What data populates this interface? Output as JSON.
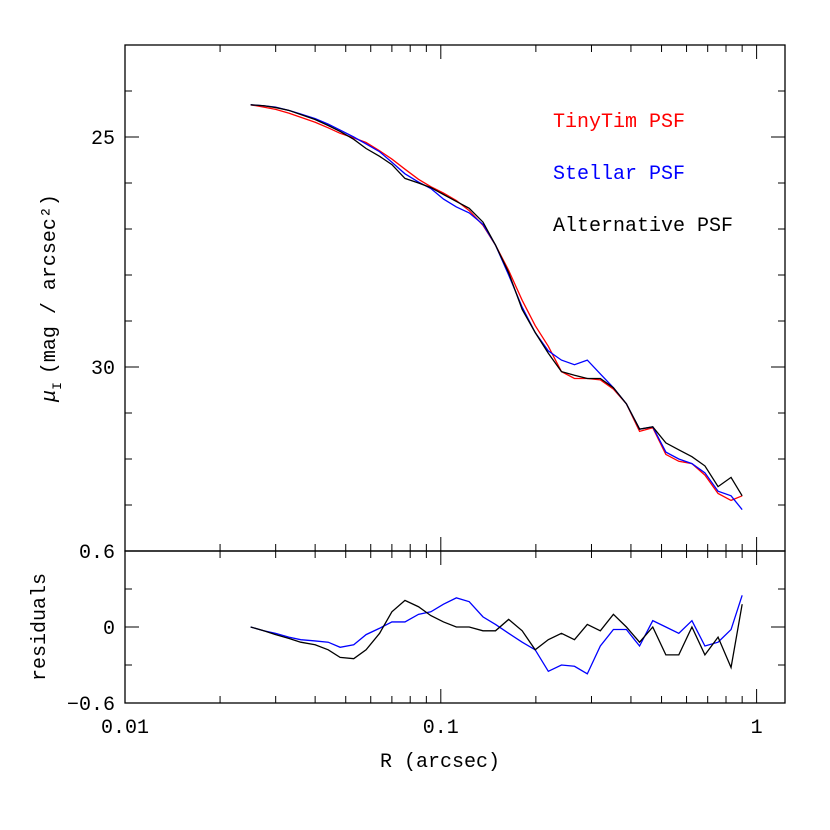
{
  "chart_data": [
    {
      "type": "line",
      "ylabel": "μ",
      "ylabel_sub": "I",
      "ylabel_unit": "(mag / arcsec²)",
      "x": [
        0.025,
        0.0275,
        0.03,
        0.033,
        0.036,
        0.04,
        0.044,
        0.048,
        0.053,
        0.058,
        0.064,
        0.07,
        0.077,
        0.085,
        0.093,
        0.102,
        0.112,
        0.123,
        0.136,
        0.149,
        0.164,
        0.181,
        0.199,
        0.219,
        0.241,
        0.265,
        0.291,
        0.32,
        0.352,
        0.387,
        0.426,
        0.469,
        0.516,
        0.567,
        0.624,
        0.686,
        0.755,
        0.83,
        0.9
      ],
      "xscale": "log",
      "xlim": [
        0.01,
        1.23
      ],
      "xticks": [
        0.01,
        0.1,
        1
      ],
      "show_xtick_labels": false,
      "ylim": [
        34,
        23
      ],
      "yticks": [
        25,
        30
      ],
      "legend": "upper right",
      "series": [
        {
          "name": "TinyTim PSF",
          "color": "#ff0000",
          "values": [
            24.3,
            24.35,
            24.4,
            24.48,
            24.57,
            24.68,
            24.8,
            24.92,
            25.02,
            25.12,
            25.3,
            25.48,
            25.7,
            25.92,
            26.08,
            26.22,
            26.38,
            26.6,
            26.92,
            27.35,
            27.9,
            28.55,
            29.1,
            29.55,
            30.1,
            30.25,
            30.25,
            30.28,
            30.48,
            30.8,
            31.4,
            31.32,
            31.9,
            32.05,
            32.1,
            32.35,
            32.75,
            32.9,
            32.8
          ]
        },
        {
          "name": "Stellar PSF",
          "color": "#0000ff",
          "values": [
            24.3,
            24.32,
            24.35,
            24.42,
            24.5,
            24.6,
            24.72,
            24.85,
            25.0,
            25.15,
            25.32,
            25.55,
            25.8,
            25.98,
            26.12,
            26.35,
            26.52,
            26.65,
            26.9,
            27.35,
            28.0,
            28.7,
            29.25,
            29.65,
            29.85,
            29.95,
            29.85,
            30.15,
            30.45,
            30.8,
            31.35,
            31.3,
            31.85,
            32.0,
            32.1,
            32.3,
            32.7,
            32.8,
            33.1
          ]
        },
        {
          "name": "Alternative PSF",
          "color": "#000000",
          "values": [
            24.3,
            24.32,
            24.36,
            24.42,
            24.51,
            24.62,
            24.75,
            24.88,
            25.05,
            25.25,
            25.42,
            25.6,
            25.9,
            26.0,
            26.1,
            26.25,
            26.4,
            26.55,
            26.85,
            27.35,
            27.95,
            28.75,
            29.25,
            29.7,
            30.1,
            30.18,
            30.25,
            30.25,
            30.45,
            30.8,
            31.35,
            31.3,
            31.65,
            31.8,
            31.95,
            32.15,
            32.6,
            32.4,
            32.8
          ]
        }
      ]
    },
    {
      "type": "line",
      "ylabel": "residuals",
      "xlabel": "R (arcsec)",
      "x": [
        0.025,
        0.0275,
        0.03,
        0.033,
        0.036,
        0.04,
        0.044,
        0.048,
        0.053,
        0.058,
        0.064,
        0.07,
        0.077,
        0.085,
        0.093,
        0.102,
        0.112,
        0.123,
        0.136,
        0.149,
        0.164,
        0.181,
        0.199,
        0.219,
        0.241,
        0.265,
        0.291,
        0.32,
        0.352,
        0.387,
        0.426,
        0.469,
        0.516,
        0.567,
        0.624,
        0.686,
        0.755,
        0.83,
        0.9
      ],
      "xscale": "log",
      "xlim": [
        0.01,
        1.23
      ],
      "xticks": [
        0.01,
        0.1,
        1
      ],
      "show_xtick_labels": true,
      "ylim": [
        -0.6,
        0.6
      ],
      "yticks": [
        0.6,
        0,
        {
          "value": -0.6,
          "label": "−0.6"
        }
      ],
      "series": [
        {
          "color": "#0000ff",
          "values": [
            0,
            -0.03,
            -0.05,
            -0.08,
            -0.1,
            -0.11,
            -0.12,
            -0.16,
            -0.14,
            -0.06,
            -0.01,
            0.04,
            0.04,
            0.1,
            0.12,
            0.18,
            0.23,
            0.2,
            0.08,
            0.02,
            -0.05,
            -0.12,
            -0.18,
            -0.35,
            -0.3,
            -0.31,
            -0.37,
            -0.15,
            -0.02,
            -0.02,
            -0.15,
            0.05,
            0.0,
            -0.05,
            0.05,
            -0.15,
            -0.12,
            -0.02,
            0.25
          ]
        },
        {
          "color": "#000000",
          "values": [
            0,
            -0.03,
            -0.06,
            -0.09,
            -0.12,
            -0.14,
            -0.18,
            -0.24,
            -0.25,
            -0.18,
            -0.05,
            0.12,
            0.21,
            0.16,
            0.09,
            0.04,
            0.0,
            0.0,
            -0.03,
            -0.03,
            0.06,
            -0.03,
            -0.18,
            -0.1,
            -0.05,
            -0.1,
            0.02,
            -0.03,
            0.1,
            0.0,
            -0.12,
            0.0,
            -0.22,
            -0.22,
            0.0,
            -0.22,
            -0.08,
            -0.32,
            0.18
          ]
        }
      ]
    }
  ]
}
